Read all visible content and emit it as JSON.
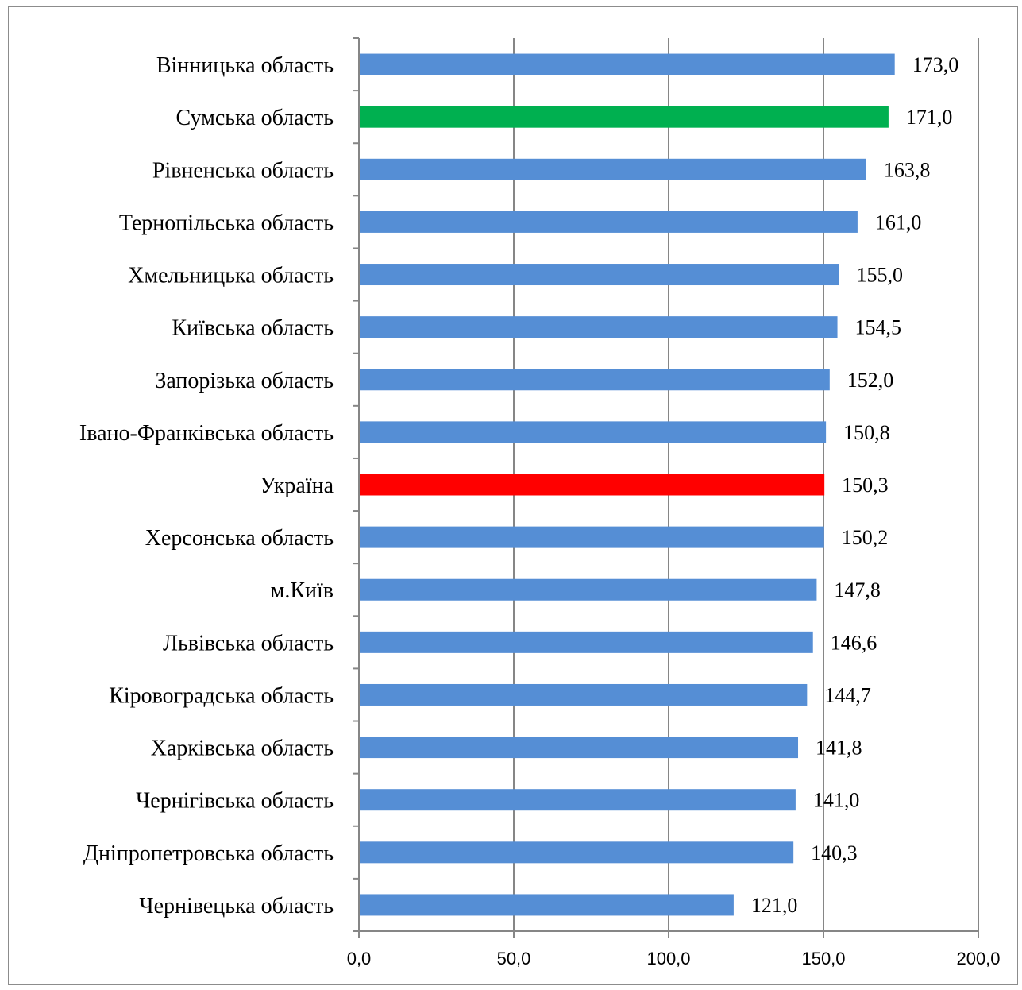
{
  "chart_data": {
    "type": "bar",
    "orientation": "horizontal",
    "categories": [
      "Вінницька  область",
      "Сумська область",
      "Рівненська  область",
      "Тернопільська  область",
      "Хмельницька  область",
      "Київська область",
      "Запорізька область",
      "Івано-Франківська область",
      "Україна",
      "Херсонська область",
      "м.Київ",
      "Львівська область",
      "Кіровоградська область",
      "Харківська  область",
      "Чернігівська  область",
      "Дніпропетровська  область",
      "Чернівецька  область"
    ],
    "values": [
      173.0,
      171.0,
      163.8,
      161.0,
      155.0,
      154.5,
      152.0,
      150.8,
      150.3,
      150.2,
      147.8,
      146.6,
      144.7,
      141.8,
      141.0,
      140.3,
      121.0
    ],
    "value_labels": [
      "173,0",
      "171,0",
      "163,8",
      "161,0",
      "155,0",
      "154,5",
      "152,0",
      "150,8",
      "150,3",
      "150,2",
      "147,8",
      "146,6",
      "144,7",
      "141,8",
      "141,0",
      "140,3",
      "121,0"
    ],
    "xlim": [
      0,
      200
    ],
    "x_ticks": [
      0,
      50,
      100,
      150,
      200
    ],
    "x_tick_labels": [
      "0,0",
      "50,0",
      "100,0",
      "150,0",
      "200,0"
    ],
    "grid": true,
    "colors": {
      "default": "#558ED5",
      "highlight_sumy": "#00B050",
      "highlight_ukraine": "#FF0000",
      "grid": "#868686",
      "axis": "#868686"
    },
    "bar_colors": [
      "#558ED5",
      "#00B050",
      "#558ED5",
      "#558ED5",
      "#558ED5",
      "#558ED5",
      "#558ED5",
      "#558ED5",
      "#FF0000",
      "#558ED5",
      "#558ED5",
      "#558ED5",
      "#558ED5",
      "#558ED5",
      "#558ED5",
      "#558ED5",
      "#558ED5"
    ]
  }
}
